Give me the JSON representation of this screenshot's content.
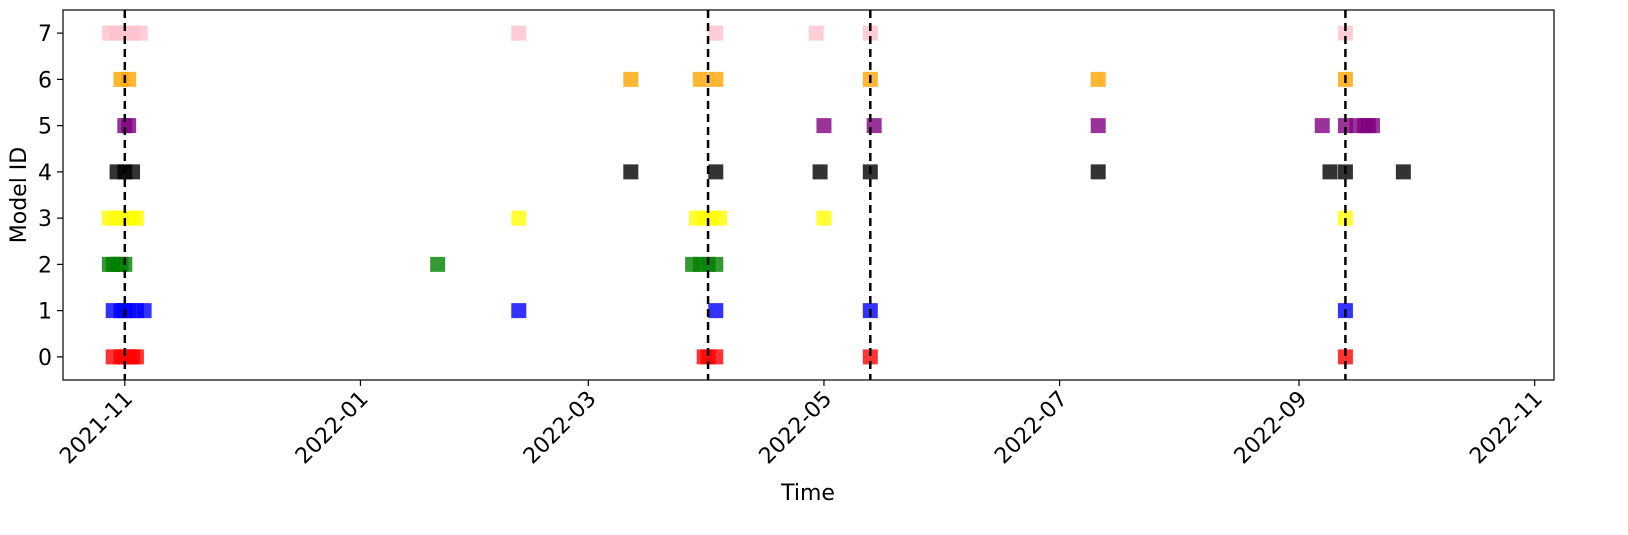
{
  "chart_data": {
    "type": "scatter",
    "title": "",
    "xlabel": "Time",
    "ylabel": "Model ID",
    "xlim": [
      "2021-10-16",
      "2022-11-06"
    ],
    "ylim": [
      -0.5,
      7.5
    ],
    "grid": false,
    "legend": "none",
    "marker": "square",
    "x_ticks": [
      {
        "date": "2021-11-01",
        "label": "2021-11"
      },
      {
        "date": "2022-01-01",
        "label": "2022-01"
      },
      {
        "date": "2022-03-01",
        "label": "2022-03"
      },
      {
        "date": "2022-05-01",
        "label": "2022-05"
      },
      {
        "date": "2022-07-01",
        "label": "2022-07"
      },
      {
        "date": "2022-09-01",
        "label": "2022-09"
      },
      {
        "date": "2022-11-01",
        "label": "2022-11"
      }
    ],
    "y_ticks": [
      0,
      1,
      2,
      3,
      4,
      5,
      6,
      7
    ],
    "vertical_lines": [
      "2021-11-01",
      "2022-04-01",
      "2022-05-13",
      "2022-09-13"
    ],
    "series": [
      {
        "model_id": 0,
        "color": "#ff0000",
        "x": [
          "2021-10-29",
          "2021-10-31",
          "2021-11-01",
          "2021-11-02",
          "2021-11-03",
          "2021-11-04",
          "2022-03-31",
          "2022-04-01",
          "2022-04-03",
          "2022-05-13",
          "2022-09-13"
        ]
      },
      {
        "model_id": 1,
        "color": "#0000ff",
        "x": [
          "2021-10-29",
          "2021-10-31",
          "2021-11-01",
          "2021-11-02",
          "2021-11-04",
          "2021-11-06",
          "2022-02-11",
          "2022-04-03",
          "2022-05-13",
          "2022-09-13"
        ]
      },
      {
        "model_id": 2,
        "color": "#008000",
        "x": [
          "2021-10-28",
          "2021-10-29",
          "2021-10-30",
          "2021-10-31",
          "2021-11-01",
          "2022-01-21",
          "2022-03-28",
          "2022-03-30",
          "2022-04-01",
          "2022-04-03"
        ]
      },
      {
        "model_id": 3,
        "color": "#ffff00",
        "x": [
          "2021-10-28",
          "2021-10-30",
          "2021-11-01",
          "2021-11-03",
          "2021-11-04",
          "2022-02-11",
          "2022-03-29",
          "2022-03-31",
          "2022-04-02",
          "2022-04-04",
          "2022-05-01",
          "2022-09-13"
        ]
      },
      {
        "model_id": 4,
        "color": "#000000",
        "x": [
          "2021-10-30",
          "2021-11-01",
          "2021-11-03",
          "2022-03-12",
          "2022-04-03",
          "2022-04-30",
          "2022-05-13",
          "2022-07-11",
          "2022-09-09",
          "2022-09-13",
          "2022-09-28"
        ]
      },
      {
        "model_id": 5,
        "color": "#800080",
        "x": [
          "2021-11-01",
          "2021-11-02",
          "2022-05-01",
          "2022-05-14",
          "2022-07-11",
          "2022-09-07",
          "2022-09-13",
          "2022-09-16",
          "2022-09-18",
          "2022-09-19",
          "2022-09-20"
        ]
      },
      {
        "model_id": 6,
        "color": "#ffa500",
        "x": [
          "2021-10-31",
          "2021-11-02",
          "2022-03-12",
          "2022-03-30",
          "2022-04-03",
          "2022-05-13",
          "2022-07-11",
          "2022-09-13"
        ]
      },
      {
        "model_id": 7,
        "color": "#ffc0cb",
        "x": [
          "2021-10-28",
          "2021-10-30",
          "2021-11-01",
          "2021-11-03",
          "2021-11-05",
          "2022-02-11",
          "2022-04-03",
          "2022-04-29",
          "2022-05-13",
          "2022-09-13"
        ]
      }
    ]
  }
}
